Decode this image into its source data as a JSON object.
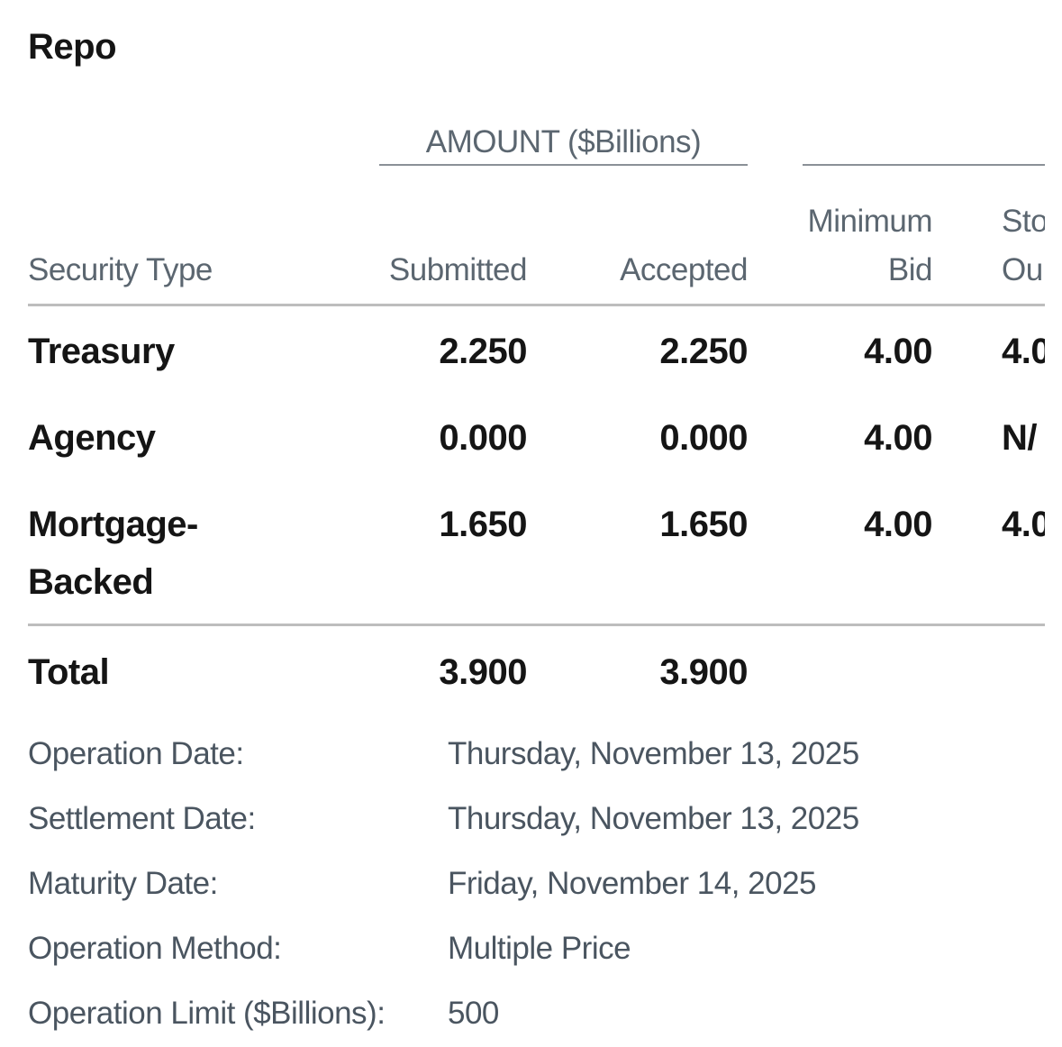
{
  "header": {
    "title": "Repo"
  },
  "table": {
    "group_header": "AMOUNT ($Billions)",
    "columns": [
      [
        "Security Type"
      ],
      [
        "Submitted"
      ],
      [
        "Accepted"
      ],
      [
        "Minimum",
        "Bid"
      ],
      [
        "Sto",
        "Ou"
      ]
    ],
    "rows": [
      [
        "Treasury",
        "2.250",
        "2.250",
        "4.00",
        "4.0"
      ],
      [
        "Agency",
        "0.000",
        "0.000",
        "4.00",
        "N/"
      ],
      [
        "Mortgage-Backed",
        "1.650",
        "1.650",
        "4.00",
        "4.0"
      ]
    ],
    "total": [
      "Total",
      "3.900",
      "3.900"
    ]
  },
  "details": [
    [
      "Operation Date:",
      "Thursday, November 13, 2025"
    ],
    [
      "Settlement Date:",
      "Thursday, November 13, 2025"
    ],
    [
      "Maturity Date:",
      "Friday, November 14, 2025"
    ],
    [
      "Operation Method:",
      "Multiple Price"
    ],
    [
      "Operation Limit ($Billions):",
      "500"
    ]
  ]
}
